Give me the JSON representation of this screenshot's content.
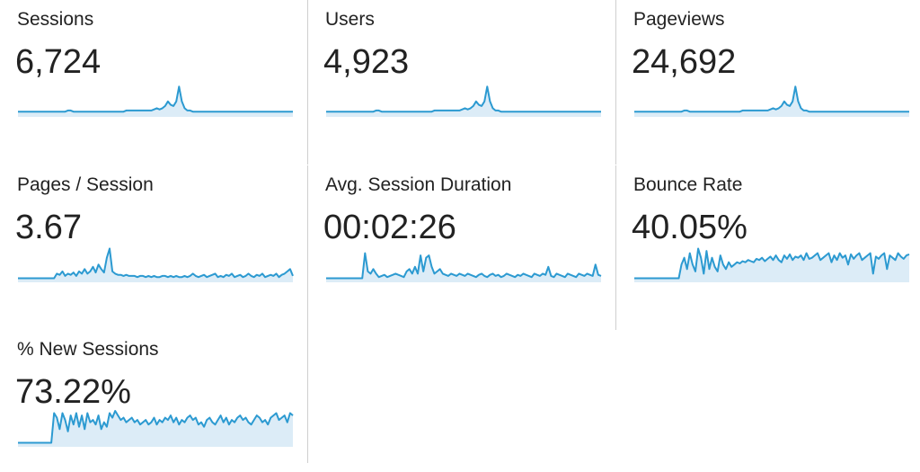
{
  "accent_color": "#2c9ad1",
  "fill_color": "#dcecf7",
  "metrics": [
    {
      "label": "Sessions",
      "value": "6,724",
      "sparkline": [
        3,
        3,
        3,
        3,
        3,
        3,
        3,
        3,
        3,
        3,
        3,
        3,
        3,
        3,
        3,
        3,
        3,
        3,
        4,
        4,
        3,
        3,
        3,
        3,
        3,
        3,
        3,
        3,
        3,
        3,
        3,
        3,
        3,
        3,
        3,
        3,
        3,
        3,
        3,
        4,
        4,
        4,
        4,
        4,
        4,
        4,
        4,
        4,
        4,
        5,
        6,
        5,
        6,
        8,
        12,
        9,
        8,
        12,
        25,
        12,
        6,
        4,
        4,
        3,
        3,
        3,
        3,
        3,
        3,
        3,
        3,
        3,
        3,
        3,
        3,
        3,
        3,
        3,
        3,
        3,
        3,
        3,
        3,
        3,
        3,
        3,
        3,
        3,
        3,
        3,
        3,
        3,
        3,
        3,
        3,
        3,
        3,
        3,
        3,
        3
      ]
    },
    {
      "label": "Users",
      "value": "4,923",
      "sparkline": [
        3,
        3,
        3,
        3,
        3,
        3,
        3,
        3,
        3,
        3,
        3,
        3,
        3,
        3,
        3,
        3,
        3,
        3,
        4,
        4,
        3,
        3,
        3,
        3,
        3,
        3,
        3,
        3,
        3,
        3,
        3,
        3,
        3,
        3,
        3,
        3,
        3,
        3,
        3,
        4,
        4,
        4,
        4,
        4,
        4,
        4,
        4,
        4,
        4,
        5,
        6,
        5,
        6,
        8,
        12,
        9,
        8,
        12,
        25,
        12,
        6,
        4,
        4,
        3,
        3,
        3,
        3,
        3,
        3,
        3,
        3,
        3,
        3,
        3,
        3,
        3,
        3,
        3,
        3,
        3,
        3,
        3,
        3,
        3,
        3,
        3,
        3,
        3,
        3,
        3,
        3,
        3,
        3,
        3,
        3,
        3,
        3,
        3,
        3,
        3
      ]
    },
    {
      "label": "Pageviews",
      "value": "24,692",
      "sparkline": [
        3,
        3,
        3,
        3,
        3,
        3,
        3,
        3,
        3,
        3,
        3,
        3,
        3,
        3,
        3,
        3,
        3,
        3,
        4,
        4,
        3,
        3,
        3,
        3,
        3,
        3,
        3,
        3,
        3,
        3,
        3,
        3,
        3,
        3,
        3,
        3,
        3,
        3,
        3,
        4,
        4,
        4,
        4,
        4,
        4,
        4,
        4,
        4,
        4,
        5,
        6,
        5,
        6,
        8,
        12,
        9,
        8,
        12,
        25,
        12,
        6,
        4,
        4,
        3,
        3,
        3,
        3,
        3,
        3,
        3,
        3,
        3,
        3,
        3,
        3,
        3,
        3,
        3,
        3,
        3,
        3,
        3,
        3,
        3,
        3,
        3,
        3,
        3,
        3,
        3,
        3,
        3,
        3,
        3,
        3,
        3,
        3,
        3,
        3,
        3
      ]
    },
    {
      "label": "Pages / Session",
      "value": "3.67",
      "sparkline": [
        2,
        2,
        2,
        2,
        2,
        2,
        2,
        2,
        2,
        2,
        2,
        2,
        2,
        2,
        6,
        5,
        8,
        4,
        6,
        5,
        7,
        4,
        8,
        6,
        10,
        6,
        8,
        12,
        7,
        14,
        10,
        7,
        20,
        28,
        8,
        6,
        5,
        5,
        4,
        5,
        4,
        4,
        4,
        3,
        4,
        4,
        3,
        4,
        3,
        4,
        3,
        3,
        4,
        4,
        3,
        4,
        3,
        4,
        3,
        3,
        4,
        3,
        4,
        6,
        4,
        3,
        4,
        5,
        3,
        4,
        5,
        6,
        3,
        4,
        3,
        5,
        4,
        6,
        3,
        4,
        5,
        3,
        4,
        6,
        4,
        3,
        5,
        4,
        6,
        3,
        4,
        5,
        4,
        6,
        3,
        5,
        6,
        8,
        10,
        4
      ]
    },
    {
      "label": "Avg. Session Duration",
      "value": "00:02:26",
      "sparkline": [
        2,
        2,
        2,
        2,
        2,
        2,
        2,
        2,
        2,
        2,
        2,
        2,
        2,
        2,
        24,
        8,
        6,
        10,
        6,
        3,
        4,
        5,
        3,
        4,
        5,
        6,
        5,
        4,
        3,
        8,
        10,
        6,
        12,
        6,
        22,
        8,
        20,
        22,
        12,
        6,
        8,
        10,
        6,
        5,
        4,
        6,
        5,
        4,
        6,
        5,
        4,
        6,
        5,
        4,
        3,
        5,
        6,
        4,
        3,
        5,
        6,
        4,
        5,
        3,
        4,
        6,
        5,
        4,
        3,
        5,
        4,
        6,
        5,
        4,
        3,
        6,
        5,
        4,
        6,
        5,
        12,
        4,
        3,
        6,
        5,
        4,
        3,
        6,
        5,
        4,
        3,
        6,
        5,
        4,
        6,
        5,
        4,
        14,
        5,
        4
      ]
    },
    {
      "label": "Bounce Rate",
      "value": "40.05%",
      "sparkline": [
        2,
        2,
        2,
        2,
        2,
        2,
        2,
        2,
        2,
        2,
        2,
        2,
        2,
        2,
        2,
        2,
        2,
        14,
        20,
        10,
        24,
        14,
        8,
        28,
        20,
        6,
        26,
        10,
        20,
        12,
        8,
        22,
        14,
        10,
        16,
        12,
        14,
        16,
        15,
        17,
        16,
        18,
        17,
        16,
        19,
        18,
        20,
        17,
        19,
        21,
        18,
        22,
        18,
        16,
        22,
        19,
        23,
        18,
        21,
        20,
        22,
        18,
        24,
        19,
        20,
        22,
        24,
        18,
        20,
        22,
        24,
        16,
        22,
        18,
        24,
        20,
        22,
        14,
        23,
        19,
        22,
        24,
        18,
        20,
        22,
        24,
        6,
        21,
        19,
        22,
        24,
        10,
        22,
        20,
        18,
        24,
        21,
        19,
        22,
        23
      ]
    },
    {
      "label": "% New Sessions",
      "value": "73.22%",
      "sparkline": [
        2,
        2,
        2,
        2,
        2,
        2,
        2,
        2,
        2,
        2,
        2,
        2,
        2,
        28,
        24,
        14,
        28,
        22,
        12,
        26,
        18,
        28,
        16,
        26,
        14,
        28,
        20,
        22,
        18,
        26,
        14,
        20,
        16,
        28,
        24,
        30,
        26,
        22,
        24,
        20,
        22,
        24,
        20,
        22,
        18,
        20,
        22,
        18,
        20,
        24,
        18,
        22,
        20,
        24,
        22,
        26,
        20,
        24,
        18,
        22,
        20,
        24,
        26,
        22,
        24,
        18,
        20,
        16,
        22,
        24,
        20,
        18,
        22,
        26,
        20,
        24,
        18,
        22,
        20,
        24,
        26,
        22,
        24,
        20,
        18,
        22,
        26,
        24,
        20,
        22,
        18,
        24,
        26,
        28,
        22,
        24,
        26,
        20,
        28,
        26
      ]
    }
  ]
}
